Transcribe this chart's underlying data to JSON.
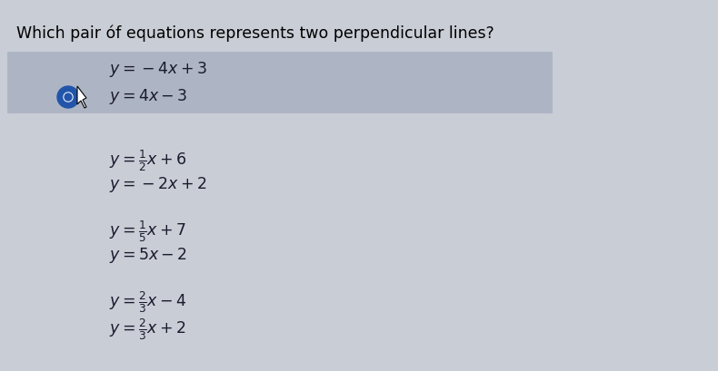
{
  "title": "Which pair óf equations represents two perpendicular lines?",
  "bg_color": "#c9cdd5",
  "highlight_color": "#adb5c5",
  "eq_color": "#1a1a2e",
  "circle_color": "#555555",
  "selected_circle_color": "#2255aa",
  "options": [
    {
      "eq1": "$y = -4x + 3$",
      "eq2": "$y = 4x - 3$",
      "selected": true
    },
    {
      "eq1": "$y = \\frac{1}{2}x + 6$",
      "eq2": "$y = -2x + 2$",
      "selected": false
    },
    {
      "eq1": "$y = \\frac{1}{5}x + 7$",
      "eq2": "$y = 5x - 2$",
      "selected": false
    },
    {
      "eq1": "$y = \\frac{2}{3}x - 4$",
      "eq2": "$y = \\frac{2}{3}x + 2$",
      "selected": false
    }
  ],
  "title_fontsize": 12.5,
  "eq_fontsize": 12.5,
  "figsize": [
    7.9,
    4.1
  ],
  "dpi": 100
}
